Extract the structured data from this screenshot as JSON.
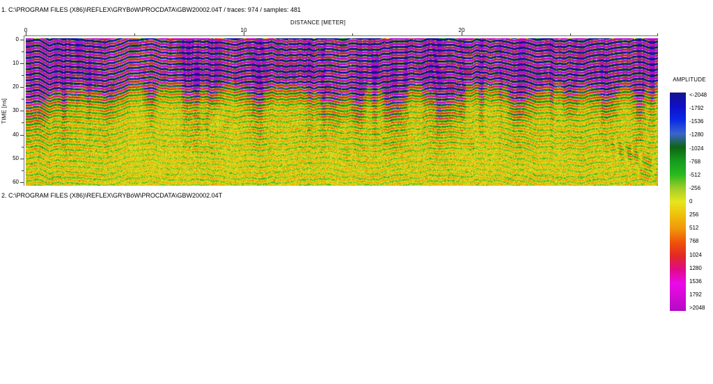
{
  "titles": {
    "section1": "1. C:\\PROGRAM FILES (X86)\\REFLEX\\GRYBóW\\PROCDATA\\GBW20002.04T / traces: 974 / samples: 481",
    "section2": "2. C:\\PROGRAM FILES (X86)\\REFLEX\\GRYBóW\\PROCDATA\\GBW20002.04T"
  },
  "axes": {
    "x": {
      "label": "DISTANCE [METER]",
      "ticks": [
        "0",
        "10",
        "20"
      ],
      "minor_ticks_meters": [
        5,
        15,
        25,
        29
      ]
    },
    "y": {
      "label": "TIME [ns]",
      "ticks": [
        "0",
        "10",
        "20",
        "30",
        "40",
        "50",
        "60"
      ],
      "minor_ticks_ns": [
        5,
        15,
        25,
        35,
        45,
        55
      ]
    }
  },
  "colorbar": {
    "title": "AMPLITUDE",
    "labels": [
      "<-2048",
      "-1792",
      "-1536",
      "-1280",
      "-1024",
      "-768",
      "-512",
      "-256",
      "0",
      "256",
      "512",
      "768",
      "1024",
      "1280",
      "1536",
      "1792",
      ">2048"
    ],
    "colors": [
      "#14148c",
      "#0f0fc8",
      "#0a28e6",
      "#3c64cd",
      "#0f6414",
      "#169b1e",
      "#28b91e",
      "#a0cd28",
      "#e6e61e",
      "#f0be0a",
      "#f0960a",
      "#f0500a",
      "#e12828",
      "#e10a8c",
      "#ea0aea",
      "#d20ad2",
      "#b30ac8"
    ]
  },
  "chart_data": {
    "type": "heatmap",
    "title": "C:\\PROGRAM FILES (X86)\\REFLEX\\GRYBóW\\PROCDATA\\GBW20002.04T",
    "traces": 974,
    "samples": 481,
    "xlabel": "DISTANCE [METER]",
    "ylabel": "TIME [ns]",
    "xlim": [
      0,
      29
    ],
    "ylim": [
      0,
      62
    ],
    "x_ticks": [
      0,
      10,
      20
    ],
    "y_ticks": [
      0,
      10,
      20,
      30,
      40,
      50,
      60
    ],
    "colorbar_label": "AMPLITUDE",
    "colorbar_ticks": [
      "<-2048",
      "-1792",
      "-1536",
      "-1280",
      "-1024",
      "-768",
      "-512",
      "-256",
      "0",
      "256",
      "512",
      "768",
      "1024",
      "1280",
      "1536",
      "1792",
      ">2048"
    ],
    "zones": [
      {
        "time_ns": "0-20",
        "description": "high-amplitude wavy horizontal banding, alternating magenta (positive, >2048) and navy (negative, <-2048) half-cycles"
      },
      {
        "time_ns": "20-35",
        "description": "moderate amplitude: red/green/orange dashes over yellow background with vertical streaks"
      },
      {
        "time_ns": "35-62",
        "description": "low-amplitude yellow speckle noise with scattered green/orange dots and a few dipping reflectors near 25-29 m"
      }
    ]
  }
}
